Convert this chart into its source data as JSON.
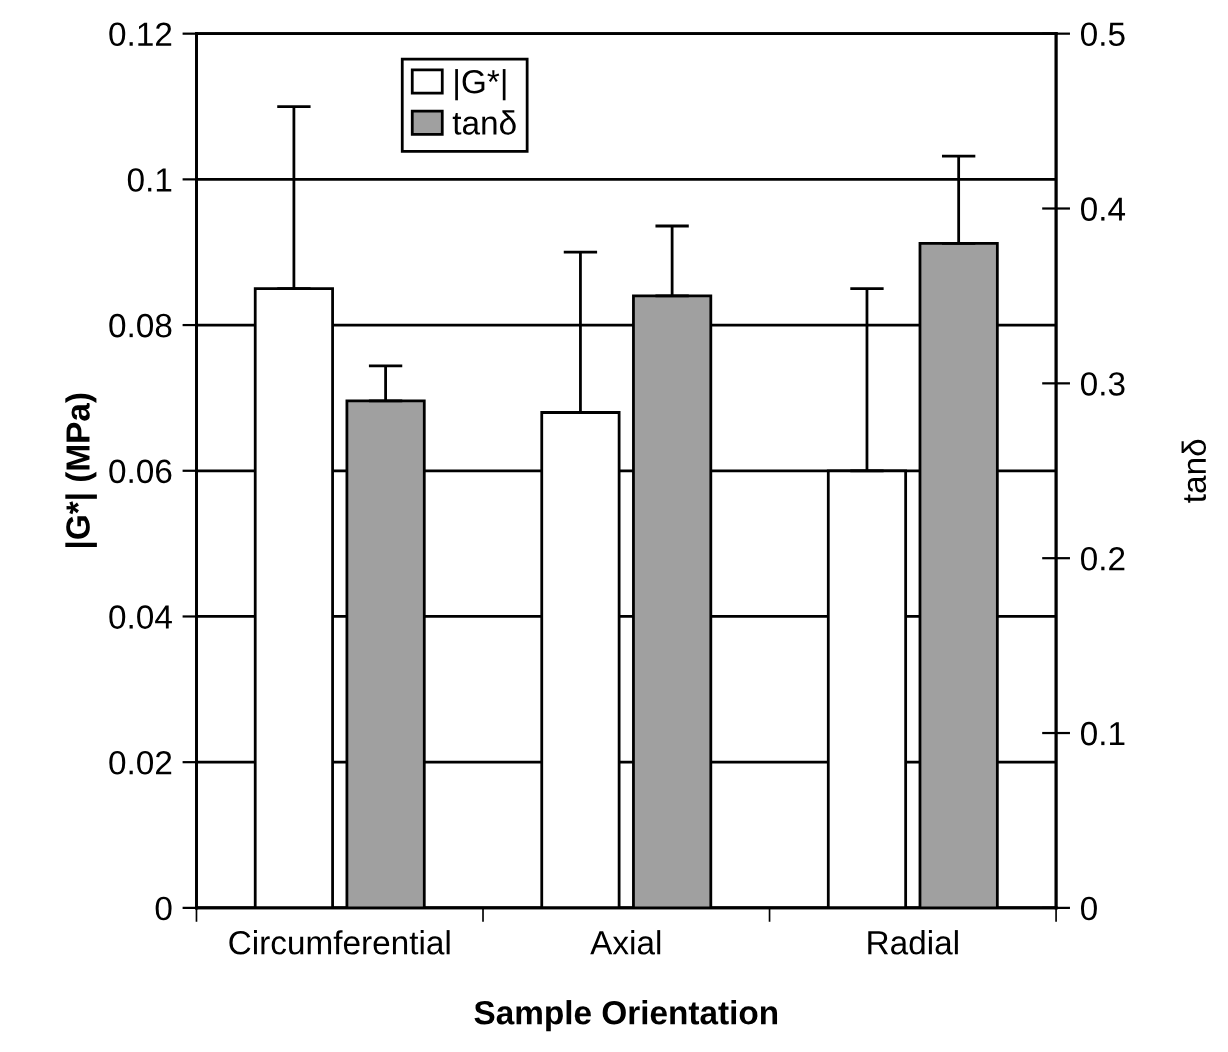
{
  "chart_data": {
    "type": "bar",
    "xlabel": "Sample Orientation",
    "ylabel": "|G*| (MPa)",
    "y2label": "tanδ",
    "categories": [
      "Circumferential",
      "Axial",
      "Radial"
    ],
    "series": [
      {
        "name": "|G*|",
        "color": "#ffffff",
        "values": [
          0.085,
          0.068,
          0.06
        ],
        "errors": [
          [
            0.085,
            0.11
          ],
          [
            0.068,
            0.09
          ],
          [
            0.06,
            0.085
          ]
        ]
      },
      {
        "name": "tanδ",
        "color": "#a0a0a0",
        "axis": "y2",
        "values": [
          0.29,
          0.35,
          0.38
        ],
        "errors": [
          [
            0.29,
            0.31
          ],
          [
            0.35,
            0.39
          ],
          [
            0.38,
            0.43
          ]
        ]
      }
    ],
    "ylim": [
      0,
      0.12
    ],
    "yticks": [
      0,
      0.02,
      0.04,
      0.06,
      0.08,
      0.1,
      0.12
    ],
    "y2lim": [
      0,
      0.5
    ],
    "y2ticks": [
      0,
      0.1,
      0.2,
      0.3,
      0.4,
      0.5
    ],
    "grid": "y",
    "legend": "top left"
  }
}
